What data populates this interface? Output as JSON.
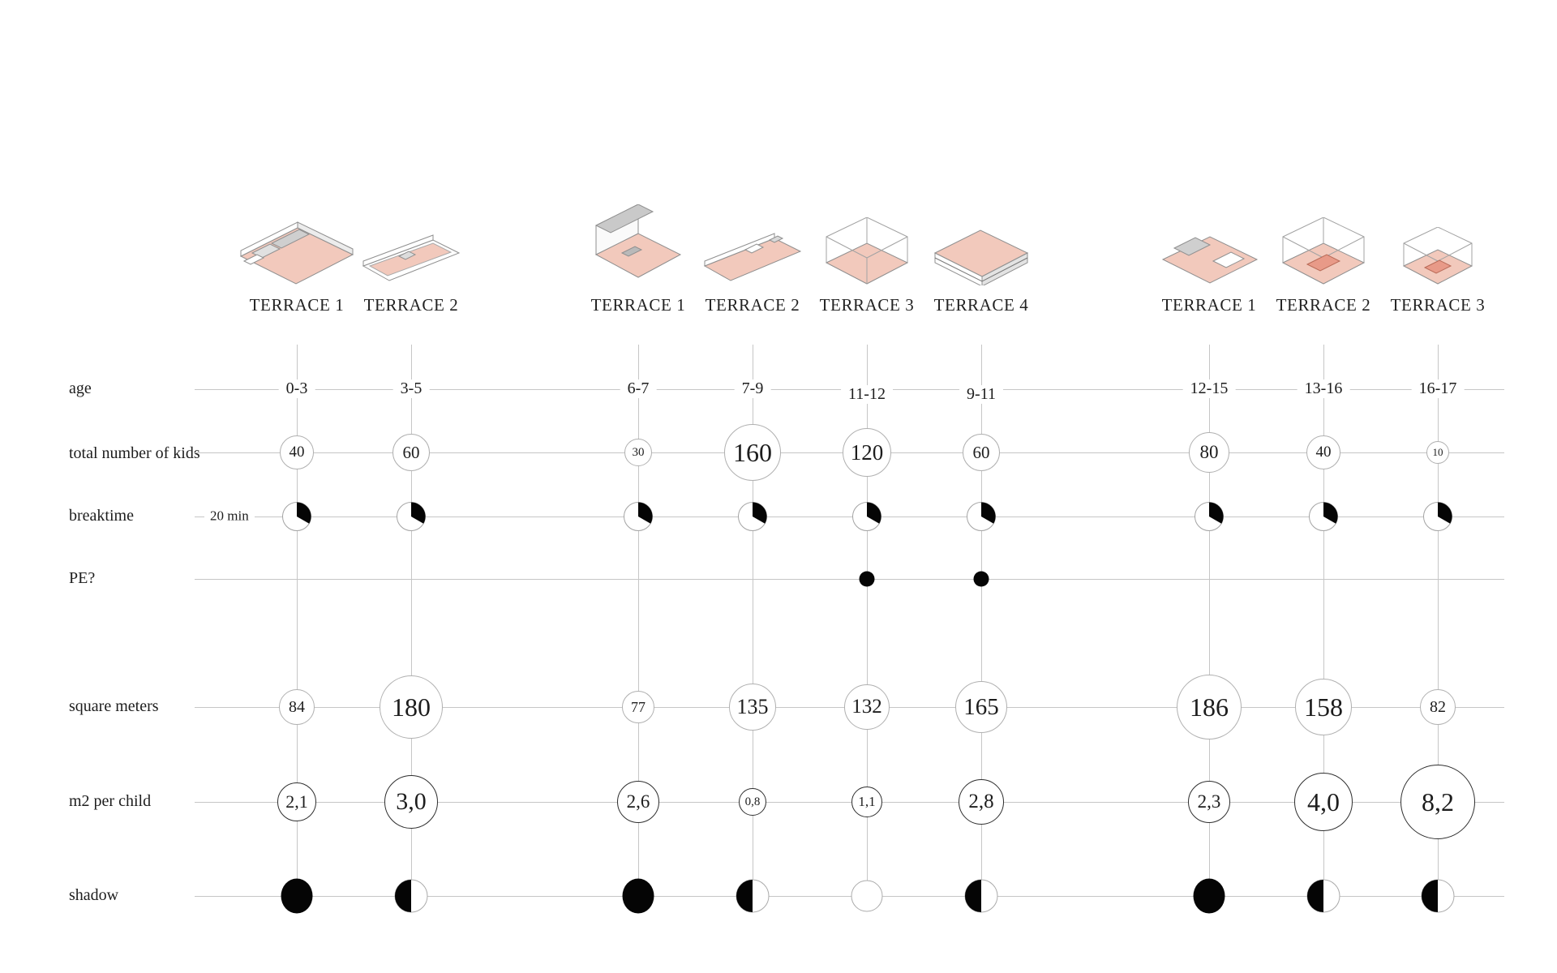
{
  "page": {
    "background": "#ffffff"
  },
  "groups": [
    {
      "name": "school-1",
      "terraces": [
        "TERRACE 1",
        "TERRACE 2"
      ]
    },
    {
      "name": "school-2",
      "terraces": [
        "TERRACE 1",
        "TERRACE 2",
        "TERRACE 3",
        "TERRACE 4"
      ]
    },
    {
      "name": "school-3",
      "terraces": [
        "TERRACE 1",
        "TERRACE 2",
        "TERRACE 3"
      ]
    }
  ],
  "row_labels": {
    "age": "age",
    "kids": "total number of kids",
    "breaktime": "breaktime",
    "pe": "PE?",
    "sqm": "square meters",
    "m2": "m2 per child",
    "shadow": "shadow"
  },
  "annotations": {
    "breaktime_note": "20 min"
  },
  "colors": {
    "pink": "#f2c9bc",
    "pink_accent": "#e89a88",
    "line": "#c6c6c6",
    "circle_stroke": "#b0b0b0",
    "dark_stroke": "#2d2d2d",
    "black": "#050505"
  },
  "columns": [
    {
      "terrace": "TERRACE 1",
      "illustration": "terrace-iso-bar-wide",
      "age": "0-3",
      "kids": "40",
      "breaktime_min": 20,
      "pe": false,
      "sqm": "84",
      "m2": "2,1",
      "shadow": "full"
    },
    {
      "terrace": "TERRACE 2",
      "illustration": "terrace-iso-bar-thin",
      "age": "3-5",
      "kids": "60",
      "breaktime_min": 20,
      "pe": false,
      "sqm": "180",
      "m2": "3,0",
      "shadow": "half"
    },
    {
      "terrace": "TERRACE 1",
      "illustration": "terrace-iso-house",
      "age": "6-7",
      "kids": "30",
      "breaktime_min": 20,
      "pe": false,
      "sqm": "77",
      "m2": "2,6",
      "shadow": "full"
    },
    {
      "terrace": "TERRACE 2",
      "illustration": "terrace-iso-bar-deck",
      "age": "7-9",
      "kids": "160",
      "breaktime_min": 20,
      "pe": false,
      "sqm": "135",
      "m2": "0,8",
      "shadow": "half"
    },
    {
      "terrace": "TERRACE 3",
      "illustration": "terrace-iso-box-wire",
      "age": "11-12",
      "kids": "120",
      "breaktime_min": 20,
      "pe": true,
      "sqm": "132",
      "m2": "1,1",
      "shadow": "none"
    },
    {
      "terrace": "TERRACE 4",
      "illustration": "terrace-iso-slab",
      "age": "9-11",
      "kids": "60",
      "breaktime_min": 20,
      "pe": true,
      "sqm": "165",
      "m2": "2,8",
      "shadow": "half"
    },
    {
      "terrace": "TERRACE 1",
      "illustration": "terrace-iso-court",
      "age": "12-15",
      "kids": "80",
      "breaktime_min": 20,
      "pe": false,
      "sqm": "186",
      "m2": "2,3",
      "shadow": "full"
    },
    {
      "terrace": "TERRACE 2",
      "illustration": "terrace-iso-box-pink",
      "age": "13-16",
      "kids": "40",
      "breaktime_min": 20,
      "pe": false,
      "sqm": "158",
      "m2": "4,0",
      "shadow": "half"
    },
    {
      "terrace": "TERRACE 3",
      "illustration": "terrace-iso-box-pink-sm",
      "age": "16-17",
      "kids": "10",
      "breaktime_min": 20,
      "pe": false,
      "sqm": "82",
      "m2": "8,2",
      "shadow": "half"
    }
  ],
  "chart_data": {
    "type": "table",
    "title": "Terrace comparison matrix for three school buildings",
    "categories": [
      "0-3",
      "3-5",
      "6-7",
      "7-9",
      "11-12",
      "9-11",
      "12-15",
      "13-16",
      "16-17"
    ],
    "column_headers": [
      "TERRACE 1",
      "TERRACE 2",
      "TERRACE 1",
      "TERRACE 2",
      "TERRACE 3",
      "TERRACE 4",
      "TERRACE 1",
      "TERRACE 2",
      "TERRACE 3"
    ],
    "group_sizes": [
      2,
      4,
      3
    ],
    "rows": [
      {
        "name": "age",
        "values": [
          "0-3",
          "3-5",
          "6-7",
          "7-9",
          "11-12",
          "9-11",
          "12-15",
          "13-16",
          "16-17"
        ]
      },
      {
        "name": "total number of kids",
        "values": [
          40,
          60,
          30,
          160,
          120,
          60,
          80,
          40,
          10
        ],
        "encoding": "circle size + number"
      },
      {
        "name": "breaktime",
        "values": [
          20,
          20,
          20,
          20,
          20,
          20,
          20,
          20,
          20
        ],
        "unit": "min",
        "encoding": "pie wedge of hour, 120 degrees black"
      },
      {
        "name": "PE?",
        "values": [
          false,
          false,
          false,
          false,
          true,
          true,
          false,
          false,
          false
        ],
        "encoding": "black dot = yes"
      },
      {
        "name": "square meters",
        "values": [
          84,
          180,
          77,
          135,
          132,
          165,
          186,
          158,
          82
        ],
        "encoding": "circle size + number"
      },
      {
        "name": "m2 per child",
        "values": [
          2.1,
          3.0,
          2.6,
          0.8,
          1.1,
          2.8,
          2.3,
          4.0,
          8.2
        ],
        "encoding": "dark circle size + number, decimal comma"
      },
      {
        "name": "shadow",
        "values": [
          "full",
          "half",
          "full",
          "half",
          "none",
          "half",
          "full",
          "half",
          "half"
        ],
        "encoding": "filled / half-filled / empty circle"
      }
    ],
    "legend_position": "none",
    "grid": "matrix of light gray row and column lines"
  }
}
